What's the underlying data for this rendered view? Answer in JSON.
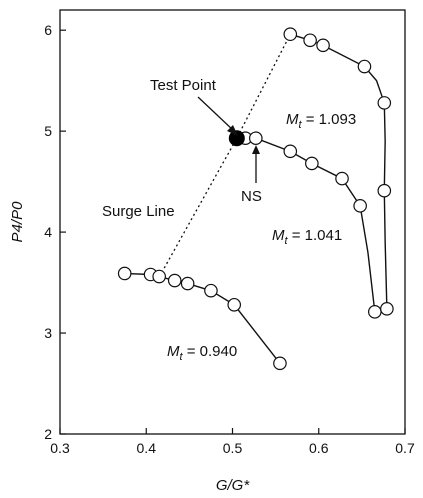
{
  "chart_data": {
    "type": "line",
    "xlabel": "G/G*",
    "ylabel": "P4/P0",
    "xlim": [
      0.3,
      0.7
    ],
    "ylim": [
      2,
      6.2
    ],
    "xticks": [
      "0.3",
      "0.4",
      "0.5",
      "0.6",
      "0.7"
    ],
    "yticks": [
      "2",
      "3",
      "4",
      "5",
      "6"
    ],
    "xtick_values": [
      0.3,
      0.4,
      0.5,
      0.6,
      0.7
    ],
    "ytick_values": [
      2,
      3,
      4,
      5,
      6
    ],
    "grid": false,
    "series": [
      {
        "name": "Mt = 0.940",
        "marker_x": [
          0.375,
          0.405,
          0.415,
          0.433,
          0.448,
          0.475,
          0.502,
          0.555
        ],
        "marker_y": [
          3.59,
          3.58,
          3.56,
          3.52,
          3.49,
          3.42,
          3.28,
          2.7
        ],
        "line_x": [
          0.375,
          0.405,
          0.415,
          0.433,
          0.448,
          0.475,
          0.502,
          0.555
        ],
        "line_y": [
          3.59,
          3.58,
          3.56,
          3.52,
          3.49,
          3.42,
          3.28,
          2.7
        ]
      },
      {
        "name": "Mt = 1.041",
        "marker_x": [
          0.515,
          0.527,
          0.567,
          0.592,
          0.627,
          0.648,
          0.665
        ],
        "marker_y": [
          4.93,
          4.93,
          4.8,
          4.68,
          4.53,
          4.26,
          3.21
        ],
        "line_x": [
          0.505,
          0.515,
          0.527,
          0.567,
          0.592,
          0.627,
          0.648,
          0.657,
          0.665
        ],
        "line_y": [
          4.93,
          4.93,
          4.93,
          4.8,
          4.68,
          4.53,
          4.26,
          3.8,
          3.21
        ]
      },
      {
        "name": "Mt = 1.093",
        "marker_x": [
          0.567,
          0.59,
          0.605,
          0.653,
          0.676,
          0.676,
          0.679
        ],
        "marker_y": [
          5.96,
          5.9,
          5.85,
          5.64,
          5.28,
          4.41,
          3.24
        ],
        "line_x": [
          0.567,
          0.59,
          0.605,
          0.653,
          0.667,
          0.676,
          0.677,
          0.676,
          0.677,
          0.679
        ],
        "line_y": [
          5.96,
          5.9,
          5.85,
          5.64,
          5.5,
          5.28,
          4.9,
          4.41,
          3.9,
          3.24
        ]
      }
    ],
    "surge_line": {
      "name": "Surge Line",
      "x": [
        0.418,
        0.505,
        0.567
      ],
      "y": [
        3.6,
        4.93,
        5.96
      ]
    },
    "test_point": {
      "x": 0.505,
      "y": 4.93
    },
    "annotations": {
      "test_point_label": "Test Point",
      "surge_line_label": "Surge Line",
      "ns_label": "NS",
      "mt_prefix": "M",
      "mt_sub": "t",
      "mt_values": [
        " = 1.093",
        " = 1.041",
        " = 0.940"
      ]
    }
  }
}
